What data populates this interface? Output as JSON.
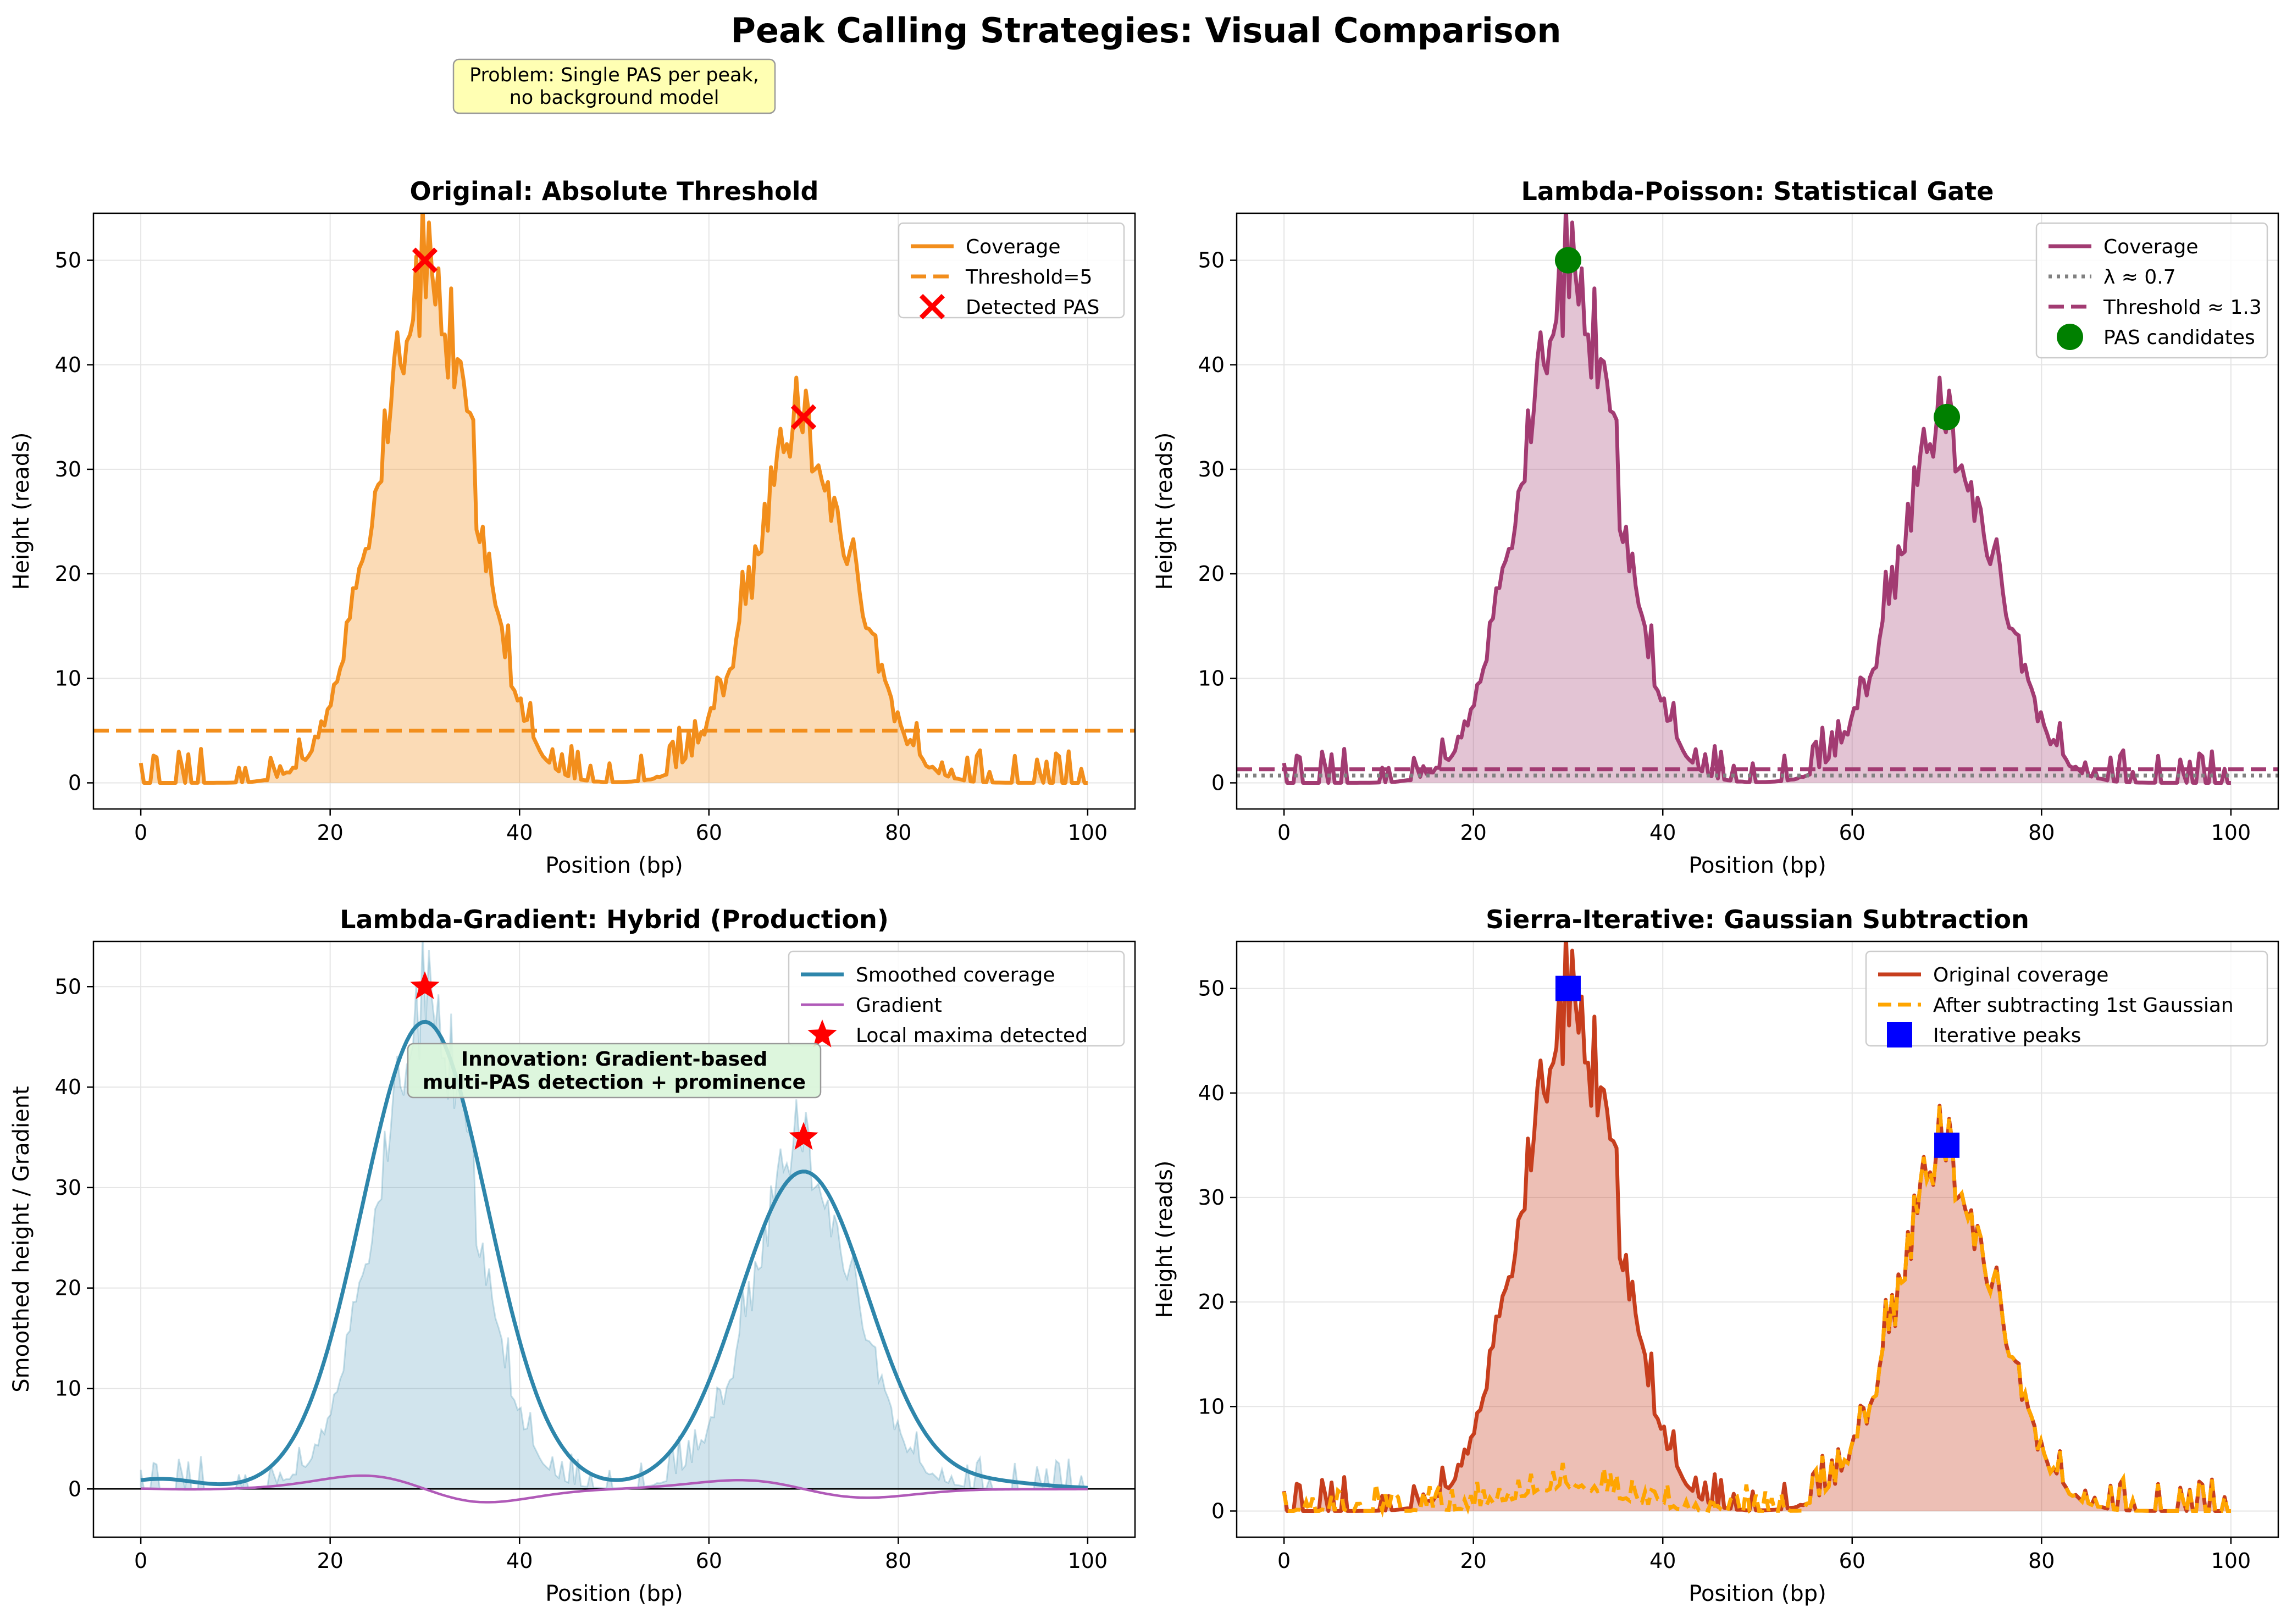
{
  "suptitle": "Peak Calling Strategies: Visual Comparison",
  "note_problem": "Problem: Single PAS per peak,\nno background model",
  "note_innovation": "Innovation: Gradient-based\nmulti-PAS detection + prominence",
  "colors": {
    "orange": "#f28e1c",
    "purple": "#a23b72",
    "blue": "#2e86ab",
    "gradient": "#b05ab8",
    "red": "#c73e1d",
    "dashed_orange": "#ffa500",
    "marker_red": "#ff0000",
    "marker_green": "#008000",
    "marker_blue": "#0000ff",
    "grid": "#e5e5e5",
    "note_problem_bg": "#ffffb3",
    "note_innovation_bg": "#d9f5d9"
  },
  "chart_data": [
    {
      "id": "original",
      "type": "line",
      "title": "Original: Absolute Threshold",
      "xlabel": "Position (bp)",
      "ylabel": "Height (reads)",
      "xlim": [
        -5,
        105
      ],
      "ylim": [
        -2.5,
        54.5
      ],
      "xticks": [
        0,
        20,
        40,
        60,
        80,
        100
      ],
      "yticks": [
        0,
        10,
        20,
        30,
        40,
        50
      ],
      "grid": true,
      "legend": "top-right",
      "series": [
        {
          "name": "Coverage",
          "kind": "coverage",
          "fill": true
        },
        {
          "name": "Threshold=5",
          "kind": "hline",
          "y": 5,
          "style": "dashed"
        },
        {
          "name": "Detected PAS",
          "kind": "markers",
          "marker": "x",
          "points": [
            [
              30,
              50
            ],
            [
              70,
              35
            ]
          ]
        }
      ]
    },
    {
      "id": "poisson",
      "type": "line",
      "title": "Lambda-Poisson: Statistical Gate",
      "xlabel": "Position (bp)",
      "ylabel": "Height (reads)",
      "xlim": [
        -5,
        105
      ],
      "ylim": [
        -2.5,
        54.5
      ],
      "xticks": [
        0,
        20,
        40,
        60,
        80,
        100
      ],
      "yticks": [
        0,
        10,
        20,
        30,
        40,
        50
      ],
      "grid": true,
      "legend": "top-right",
      "series": [
        {
          "name": "Coverage",
          "kind": "coverage",
          "fill": true
        },
        {
          "name": "λ ≈ 0.7",
          "kind": "hline",
          "y": 0.7,
          "style": "dotted"
        },
        {
          "name": "Threshold ≈ 1.3",
          "kind": "hline",
          "y": 1.3,
          "style": "dashed"
        },
        {
          "name": "PAS candidates",
          "kind": "markers",
          "marker": "circle",
          "points": [
            [
              30,
              50
            ],
            [
              70,
              35
            ]
          ]
        }
      ]
    },
    {
      "id": "gradient",
      "type": "line",
      "title": "Lambda-Gradient: Hybrid (Production)",
      "xlabel": "Position (bp)",
      "ylabel": "Smoothed height / Gradient",
      "xlim": [
        -5,
        105
      ],
      "ylim": [
        -4.8,
        54.5
      ],
      "xticks": [
        0,
        20,
        40,
        60,
        80,
        100
      ],
      "yticks": [
        0,
        10,
        20,
        30,
        40,
        50
      ],
      "grid": true,
      "legend": "top-right",
      "series": [
        {
          "name": "Smoothed coverage",
          "kind": "smoothed"
        },
        {
          "name": "Gradient",
          "kind": "gradient"
        },
        {
          "name": "Local maxima detected",
          "kind": "markers",
          "marker": "star",
          "points": [
            [
              30,
              50
            ],
            [
              70,
              35
            ]
          ]
        }
      ]
    },
    {
      "id": "sierra",
      "type": "line",
      "title": "Sierra-Iterative: Gaussian Subtraction",
      "xlabel": "Position (bp)",
      "ylabel": "Height (reads)",
      "xlim": [
        -5,
        105
      ],
      "ylim": [
        -2.5,
        54.5
      ],
      "xticks": [
        0,
        20,
        40,
        60,
        80,
        100
      ],
      "yticks": [
        0,
        10,
        20,
        30,
        40,
        50
      ],
      "grid": true,
      "legend": "top-right",
      "series": [
        {
          "name": "Original coverage",
          "kind": "coverage",
          "fill": true
        },
        {
          "name": "After subtracting 1st Gaussian",
          "kind": "residual",
          "style": "dashed"
        },
        {
          "name": "Iterative peaks",
          "kind": "markers",
          "marker": "square",
          "points": [
            [
              30,
              50
            ],
            [
              70,
              35
            ]
          ]
        }
      ]
    }
  ]
}
